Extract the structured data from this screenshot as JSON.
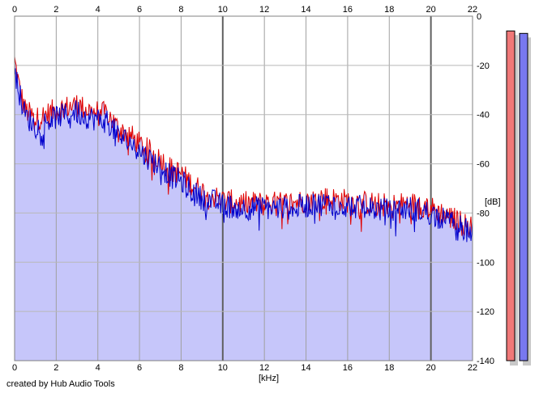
{
  "chart_data": {
    "type": "area",
    "title": "",
    "xlabel": "[kHz]",
    "ylabel": "[dB]",
    "xlim": [
      0,
      22
    ],
    "ylim": [
      -140,
      0
    ],
    "x_ticks": [
      0,
      2,
      4,
      6,
      8,
      10,
      12,
      14,
      16,
      18,
      20,
      22
    ],
    "y_ticks": [
      0,
      -20,
      -40,
      -60,
      -80,
      -100,
      -120,
      -140
    ],
    "grid": true,
    "legend": "none",
    "series": [
      {
        "color": "#e00000",
        "x": [
          0,
          0.25,
          0.5,
          1,
          1.5,
          2,
          2.5,
          3,
          3.5,
          4,
          4.5,
          5,
          5.5,
          6,
          6.5,
          7,
          7.5,
          8,
          8.5,
          9,
          9.5,
          10,
          11,
          12,
          13,
          14,
          15,
          16,
          17,
          18,
          19,
          20,
          20.5,
          21,
          21.5,
          22
        ],
        "values": [
          -18,
          -30,
          -38,
          -42,
          -40,
          -38,
          -37,
          -36,
          -38,
          -39,
          -40,
          -46,
          -48,
          -52,
          -55,
          -58,
          -62,
          -64,
          -68,
          -71,
          -73,
          -75,
          -76,
          -76,
          -76,
          -75,
          -74,
          -75,
          -76,
          -77,
          -76,
          -78,
          -80,
          -82,
          -84,
          -86
        ]
      },
      {
        "color": "#0000cc",
        "x": [
          0,
          0.25,
          0.5,
          1,
          1.5,
          2,
          2.5,
          3,
          3.5,
          4,
          4.5,
          5,
          5.5,
          6,
          6.5,
          7,
          7.5,
          8,
          8.5,
          9,
          9.5,
          10,
          11,
          12,
          13,
          14,
          15,
          16,
          17,
          18,
          19,
          20,
          20.5,
          21,
          21.5,
          22
        ],
        "values": [
          -20,
          -32,
          -40,
          -45,
          -43,
          -41,
          -40,
          -39,
          -41,
          -42,
          -43,
          -49,
          -51,
          -55,
          -58,
          -61,
          -65,
          -67,
          -71,
          -74,
          -75,
          -77,
          -78,
          -78,
          -78,
          -77,
          -76,
          -77,
          -78,
          -79,
          -78,
          -80,
          -82,
          -84,
          -86,
          -88
        ]
      }
    ],
    "meters": [
      {
        "color": "#f07878",
        "level_db": -6
      },
      {
        "color": "#7878f0",
        "level_db": -7
      }
    ]
  },
  "credit": "created by Hub Audio Tools"
}
